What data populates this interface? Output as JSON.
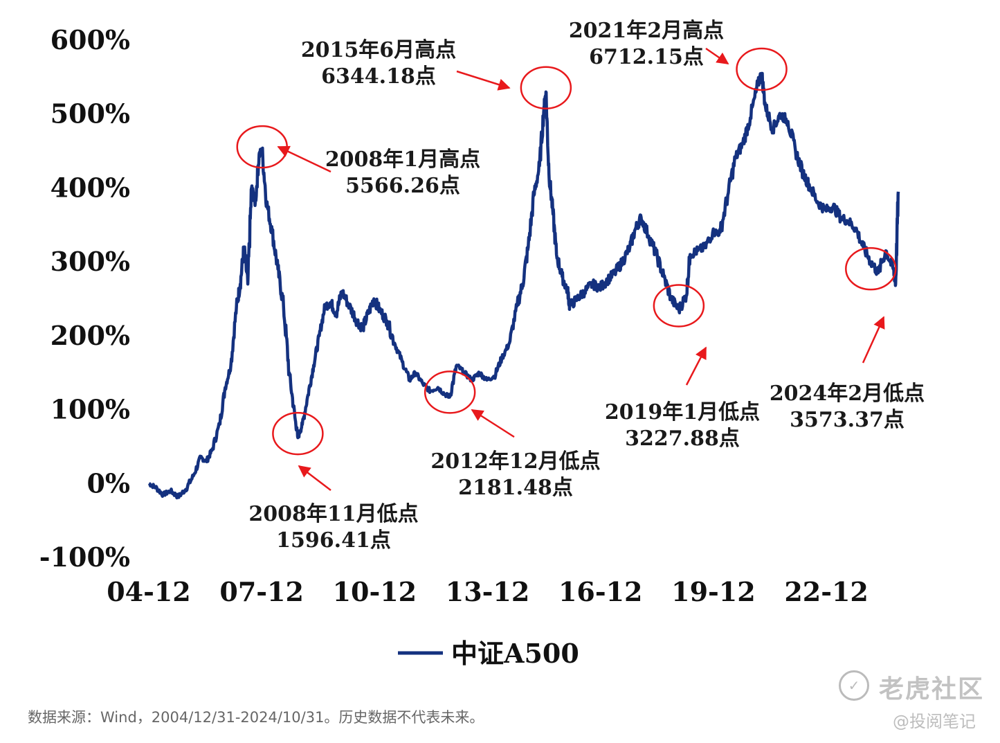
{
  "chart_data": {
    "type": "line",
    "title": "",
    "xlabel": "",
    "ylabel": "",
    "ylim": [
      -100,
      600
    ],
    "yticks": [
      "600%",
      "500%",
      "400%",
      "300%",
      "200%",
      "100%",
      "0%",
      "-100%"
    ],
    "ytick_values": [
      600,
      500,
      400,
      300,
      200,
      100,
      0,
      -100
    ],
    "xticks": [
      "04-12",
      "07-12",
      "10-12",
      "13-12",
      "16-12",
      "19-12",
      "22-12"
    ],
    "xtick_years": [
      2004.92,
      2007.92,
      2010.92,
      2013.92,
      2016.92,
      2019.92,
      2022.92
    ],
    "xlim": [
      2004.92,
      2024.83
    ],
    "legend": "bottom-center",
    "series": [
      {
        "name": "中证A500",
        "color": "#14317f",
        "x": [
          2004.92,
          2005.1,
          2005.3,
          2005.5,
          2005.7,
          2005.9,
          2006.1,
          2006.3,
          2006.45,
          2006.6,
          2006.8,
          2006.95,
          2007.1,
          2007.25,
          2007.35,
          2007.45,
          2007.55,
          2007.65,
          2007.75,
          2007.85,
          2007.93,
          2008.05,
          2008.2,
          2008.35,
          2008.5,
          2008.65,
          2008.8,
          2008.88,
          2009.0,
          2009.15,
          2009.3,
          2009.45,
          2009.6,
          2009.75,
          2009.9,
          2010.05,
          2010.25,
          2010.45,
          2010.6,
          2010.75,
          2010.9,
          2011.05,
          2011.25,
          2011.45,
          2011.65,
          2011.85,
          2012.0,
          2012.2,
          2012.4,
          2012.6,
          2012.8,
          2012.92,
          2013.1,
          2013.3,
          2013.5,
          2013.7,
          2013.9,
          2014.1,
          2014.3,
          2014.5,
          2014.7,
          2014.85,
          2015.0,
          2015.15,
          2015.3,
          2015.42,
          2015.47,
          2015.55,
          2015.65,
          2015.75,
          2015.9,
          2016.05,
          2016.1,
          2016.3,
          2016.5,
          2016.7,
          2016.9,
          2017.1,
          2017.3,
          2017.5,
          2017.7,
          2017.85,
          2018.0,
          2018.2,
          2018.4,
          2018.6,
          2018.8,
          2019.0,
          2019.2,
          2019.3,
          2019.5,
          2019.7,
          2019.9,
          2020.1,
          2020.3,
          2020.5,
          2020.7,
          2020.9,
          2021.1,
          2021.2,
          2021.3,
          2021.5,
          2021.7,
          2021.9,
          2022.1,
          2022.3,
          2022.5,
          2022.7,
          2022.9,
          2023.1,
          2023.3,
          2023.5,
          2023.7,
          2023.9,
          2024.1,
          2024.3,
          2024.5,
          2024.7,
          2024.76,
          2024.83
        ],
        "values": [
          0,
          -5,
          -15,
          -10,
          -18,
          -8,
          10,
          35,
          30,
          45,
          80,
          130,
          160,
          240,
          270,
          320,
          270,
          400,
          380,
          445,
          450,
          380,
          340,
          290,
          240,
          150,
          90,
          62,
          80,
          120,
          160,
          200,
          240,
          245,
          230,
          260,
          240,
          220,
          210,
          230,
          250,
          235,
          220,
          190,
          165,
          140,
          150,
          135,
          125,
          130,
          120,
          118,
          160,
          150,
          140,
          150,
          140,
          145,
          170,
          190,
          240,
          270,
          320,
          390,
          430,
          510,
          530,
          420,
          370,
          310,
          280,
          260,
          240,
          250,
          260,
          270,
          265,
          275,
          285,
          300,
          320,
          345,
          360,
          335,
          310,
          280,
          250,
          235,
          255,
          310,
          315,
          320,
          340,
          340,
          390,
          440,
          460,
          495,
          540,
          555,
          510,
          480,
          500,
          490,
          450,
          420,
          400,
          380,
          370,
          375,
          360,
          355,
          345,
          320,
          300,
          285,
          315,
          290,
          270,
          395
        ]
      }
    ],
    "annotations": [
      {
        "line1": "2008年1月高点",
        "line2": "5566.26点",
        "x": 2007.93,
        "y": 450
      },
      {
        "line1": "2008年11月低点",
        "line2": "1596.41点",
        "x": 2008.88,
        "y": 62
      },
      {
        "line1": "2012年12月低点",
        "line2": "2181.48点",
        "x": 2012.92,
        "y": 118
      },
      {
        "line1": "2015年6月高点",
        "line2": "6344.18点",
        "x": 2015.47,
        "y": 530
      },
      {
        "line1": "2019年1月低点",
        "line2": "3227.88点",
        "x": 2019.0,
        "y": 235
      },
      {
        "line1": "2021年2月高点",
        "line2": "6712.15点",
        "x": 2021.2,
        "y": 555
      },
      {
        "line1": "2024年2月低点",
        "line2": "3573.37点",
        "x": 2024.1,
        "y": 285
      }
    ]
  },
  "source_note": "数据来源：Wind，2004/12/31-2024/10/31。历史数据不代表未来。",
  "watermark": {
    "brand": "老虎社区",
    "handle": "@投阅笔记"
  }
}
